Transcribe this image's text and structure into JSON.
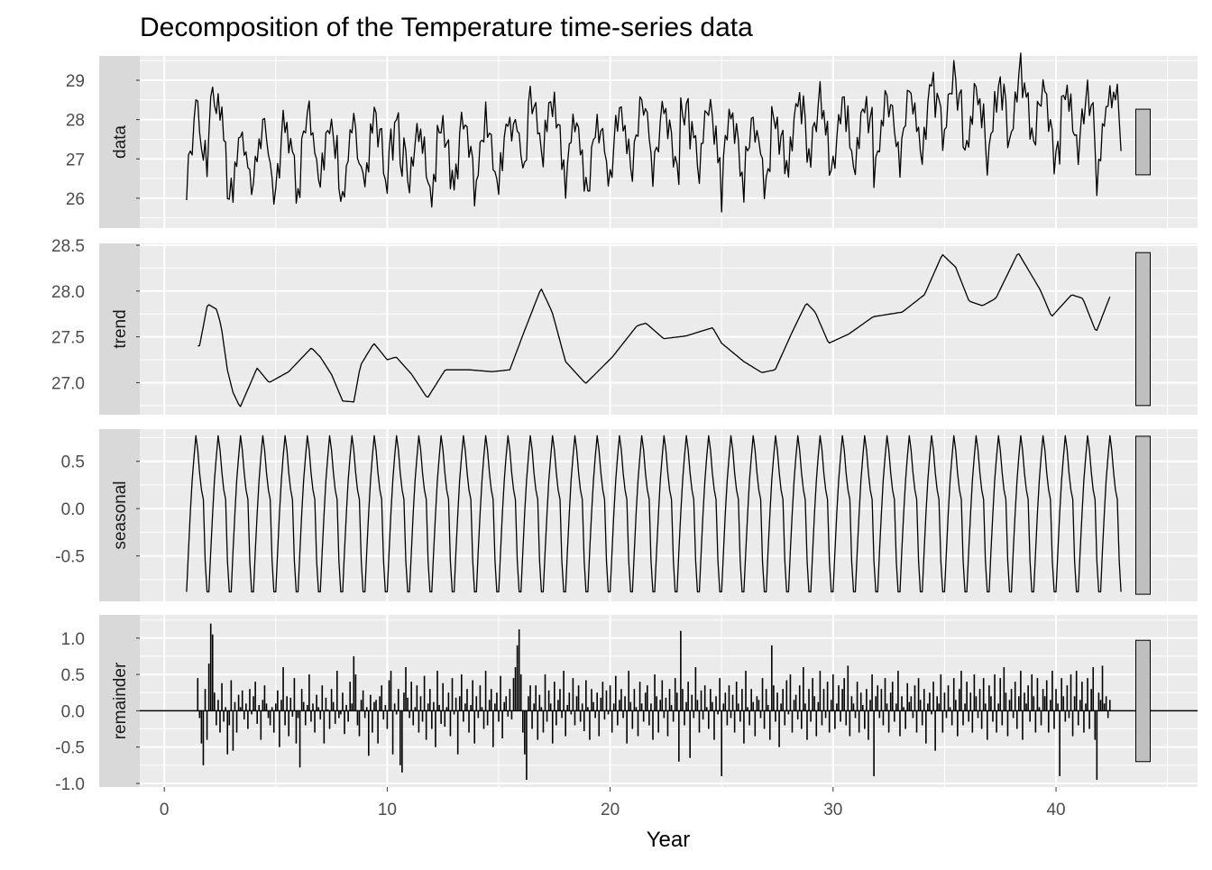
{
  "chart_data": {
    "type": "line",
    "title": "Decomposition of the Temperature time-series data",
    "xlabel": "Year",
    "xlim": [
      -1.1,
      46.35
    ],
    "x_ticks": [
      0,
      10,
      20,
      30,
      40
    ],
    "x_tick_labels": [
      "0",
      "10",
      "20",
      "30",
      "40"
    ],
    "frequency": 12,
    "grid": true,
    "scale_bar_length": 1.67,
    "panels": [
      {
        "name": "data",
        "ylim": [
          25.24,
          29.62
        ],
        "ticks": [
          26,
          27,
          28,
          29
        ],
        "tick_labels": [
          "26",
          "27",
          "28",
          "29"
        ]
      },
      {
        "name": "trend",
        "ylim": [
          26.65,
          28.52
        ],
        "ticks": [
          27.0,
          27.5,
          28.0,
          28.5
        ],
        "tick_labels": [
          "27.0",
          "27.5",
          "28.0",
          "28.5"
        ]
      },
      {
        "name": "seasonal",
        "ylim": [
          -0.98,
          0.84
        ],
        "ticks": [
          -0.5,
          0.0,
          0.5
        ],
        "tick_labels": [
          "-0.5",
          "0.0",
          "0.5"
        ]
      },
      {
        "name": "remainder",
        "ylim": [
          -1.05,
          1.32
        ],
        "ticks": [
          -1.0,
          -0.5,
          0.0,
          0.5,
          1.0
        ],
        "tick_labels": [
          "-1.0",
          "-0.5",
          "0.0",
          "0.5",
          "1.0"
        ]
      }
    ],
    "series": {
      "start": 1.0,
      "trend_start": 1.5,
      "seasonal_pattern": [
        -0.88,
        -0.45,
        -0.05,
        0.3,
        0.55,
        0.77,
        0.62,
        0.38,
        0.2,
        0.1,
        -0.55,
        -0.88
      ],
      "trend_knots": {
        "x": [
          1.58,
          1.94,
          2.35,
          2.55,
          2.83,
          3.07,
          3.4,
          4.16,
          4.7,
          5.58,
          6.6,
          7.0,
          7.5,
          8.0,
          8.5,
          8.8,
          9.4,
          10.0,
          10.4,
          11.1,
          11.8,
          12.6,
          13.7,
          14.7,
          15.5,
          16.1,
          16.9,
          17.4,
          18.0,
          18.9,
          20.1,
          21.2,
          21.6,
          22.4,
          23.4,
          24.6,
          25.0,
          26.0,
          26.8,
          27.4,
          28.2,
          28.8,
          29.2,
          29.8,
          30.7,
          31.8,
          33.1,
          34.1,
          34.9,
          35.5,
          36.1,
          36.7,
          37.3,
          38.3,
          39.3,
          39.8,
          40.7,
          41.2,
          41.8,
          42.42
        ],
        "y": [
          27.4,
          27.86,
          27.8,
          27.62,
          27.14,
          26.9,
          26.73,
          27.16,
          27.0,
          27.12,
          27.38,
          27.28,
          27.09,
          26.8,
          26.79,
          27.19,
          27.43,
          27.25,
          27.28,
          27.09,
          26.83,
          27.14,
          27.14,
          27.12,
          27.14,
          27.53,
          28.03,
          27.77,
          27.23,
          26.99,
          27.28,
          27.62,
          27.65,
          27.48,
          27.51,
          27.6,
          27.43,
          27.23,
          27.11,
          27.14,
          27.57,
          27.87,
          27.77,
          27.43,
          27.53,
          27.72,
          27.77,
          27.96,
          28.4,
          28.26,
          27.89,
          27.84,
          27.92,
          28.42,
          28.01,
          27.72,
          27.96,
          27.92,
          27.55,
          27.94
        ]
      },
      "data_head": [
        25.95,
        27.1,
        27.2,
        27.1,
        28.0,
        28.5
      ],
      "data_tail": [
        28.3,
        28.7,
        28.5,
        28.9,
        28.0,
        27.2
      ],
      "remainder": [
        0.45,
        -0.1,
        -0.45,
        -0.75,
        0.3,
        -0.4,
        0.65,
        1.2,
        1.05,
        0.25,
        -0.2,
        0.15,
        -0.3,
        0.38,
        -0.15,
        0.05,
        -0.6,
        -0.2,
        0.42,
        -0.55,
        0.12,
        -0.3,
        0.22,
        0.05,
        0.28,
        -0.12,
        0.1,
        -0.25,
        0.3,
        -0.05,
        0.2,
        0.4,
        -0.18,
        0.08,
        -0.4,
        0.15,
        0.35,
        0.1,
        -0.1,
        -0.2,
        0.05,
        -0.3,
        0.1,
        0.28,
        -0.5,
        0.15,
        0.6,
        -0.2,
        0.2,
        -0.35,
        0.18,
        -0.08,
        0.45,
        -0.45,
        -0.1,
        -0.78,
        0.3,
        0.12,
        -0.2,
        0.08,
        0.5,
        -0.15,
        0.1,
        -0.3,
        0.22,
        0.05,
        -0.12,
        0.35,
        -0.45,
        0.18,
        0.02,
        -0.25,
        0.3,
        0.12,
        -0.18,
        0.55,
        -0.1,
        -0.05,
        0.25,
        -0.32,
        0.08,
        -0.15,
        0.4,
        0.1,
        0.75,
        0.5,
        -0.2,
        -0.35,
        0.15,
        0.28,
        -0.1,
        0.05,
        -0.62,
        0.22,
        -0.3,
        0.12,
        0.15,
        -0.45,
        0.2,
        0.35,
        -0.12,
        0.08,
        -0.25,
        0.42,
        0.55,
        -0.6,
        0.1,
        -0.05,
        0.3,
        -0.75,
        -0.85,
        0.25,
        0.6,
        0.18,
        -0.1,
        0.4,
        -0.2,
        0.05,
        0.35,
        -0.3,
        0.2,
        -0.15,
        0.48,
        -0.4,
        0.1,
        0.3,
        -0.25,
        0.12,
        -0.5,
        0.55,
        0.08,
        -0.18,
        0.38,
        -0.22,
        0.05,
        0.25,
        -0.35,
        0.45,
        -0.05,
        0.18,
        -0.6,
        0.2,
        0.5,
        -0.15,
        0.1,
        0.3,
        -0.3,
        0.08,
        0.42,
        -0.45,
        0.2,
        -0.1,
        0.35,
        0.05,
        -0.25,
        0.55,
        -0.2,
        0.15,
        0.3,
        -0.5,
        0.1,
        0.25,
        -0.15,
        0.48,
        -0.38,
        0.12,
        0.2,
        -0.08,
        0.3,
        -0.12,
        0.45,
        0.6,
        0.9,
        1.12,
        0.5,
        -0.3,
        -0.6,
        -0.95,
        0.2,
        0.35,
        -0.25,
        0.1,
        0.35,
        -0.4,
        0.22,
        0.05,
        -0.3,
        0.5,
        -0.15,
        0.28,
        0.1,
        -0.45,
        0.4,
        -0.2,
        0.15,
        0.3,
        -0.1,
        0.55,
        -0.35,
        0.08,
        0.25,
        -0.05,
        0.45,
        -0.2,
        0.2,
        0.35,
        -0.15,
        0.1,
        -0.28,
        0.42,
        0.05,
        -0.4,
        0.3,
        0.12,
        -0.1,
        0.25,
        -0.35,
        0.18,
        0.4,
        -0.12,
        0.28,
        -0.05,
        0.35,
        -0.3,
        0.1,
        0.48,
        -0.2,
        0.15,
        0.3,
        -0.1,
        0.2,
        -0.45,
        0.55,
        0.12,
        -0.25,
        0.3,
        0.05,
        -0.35,
        0.4,
        0.1,
        -0.15,
        0.25,
        0.35,
        -0.2,
        0.1,
        -0.4,
        0.5,
        0.2,
        -0.3,
        0.15,
        0.42,
        -0.1,
        0.18,
        -0.35,
        0.3,
        0.08,
        -0.15,
        0.45,
        0.25,
        -0.7,
        1.1,
        0.3,
        -0.2,
        0.12,
        0.4,
        -0.65,
        0.22,
        -0.1,
        0.6,
        0.15,
        -0.3,
        0.28,
        -0.12,
        0.35,
        0.05,
        -0.25,
        0.3,
        0.12,
        -0.4,
        0.2,
        -0.05,
        0.45,
        -0.9,
        0.1,
        0.25,
        -0.2,
        0.35,
        -0.1,
        0.22,
        -0.3,
        0.4,
        0.1,
        -0.15,
        0.3,
        -0.45,
        0.55,
        0.05,
        -0.2,
        0.3,
        0.12,
        -0.35,
        0.2,
        0.15,
        -0.1,
        0.45,
        -0.25,
        0.3,
        0.08,
        -0.4,
        0.9,
        0.35,
        -0.15,
        0.25,
        -0.5,
        0.1,
        0.3,
        -0.2,
        0.42,
        -0.05,
        0.5,
        -0.3,
        0.15,
        0.22,
        -0.12,
        0.35,
        -0.25,
        0.6,
        0.1,
        -0.4,
        0.3,
        -0.15,
        0.45,
        0.2,
        -0.35,
        0.12,
        0.55,
        -0.2,
        0.3,
        -0.1,
        0.4,
        -0.3,
        0.15,
        0.5,
        -0.25,
        0.1,
        0.35,
        -0.15,
        0.3,
        0.45,
        -0.2,
        0.62,
        -0.35,
        0.2,
        0.1,
        -0.1,
        0.4,
        -0.3,
        0.25,
        0.08,
        -0.25,
        0.3,
        -0.4,
        0.15,
        0.5,
        -0.9,
        0.2,
        0.35,
        -0.1,
        0.3,
        -0.2,
        0.45,
        0.1,
        -0.3,
        0.25,
        0.4,
        -0.15,
        0.1,
        0.55,
        -0.35,
        0.2,
        0.05,
        -0.25,
        0.38,
        0.12,
        0.2,
        -0.1,
        0.35,
        -0.3,
        0.45,
        0.15,
        -0.2,
        0.3,
        -0.45,
        0.1,
        0.25,
        -0.05,
        0.4,
        -0.55,
        0.2,
        0.1,
        0.5,
        -0.3,
        0.25,
        -0.1,
        0.35,
        0.05,
        -0.2,
        0.45,
        0.15,
        -0.35,
        0.3,
        0.55,
        -0.2,
        0.1,
        0.4,
        -0.15,
        0.25,
        -0.3,
        0.5,
        0.2,
        -0.1,
        0.3,
        -0.25,
        0.45,
        0.1,
        -0.4,
        0.35,
        0.2,
        -0.15,
        0.5,
        -0.3,
        0.1,
        0.45,
        -0.2,
        0.6,
        0.25,
        -0.35,
        0.15,
        0.3,
        -0.1,
        0.4,
        -0.25,
        0.2,
        0.55,
        -0.4,
        0.25,
        0.1,
        0.35,
        -0.15,
        0.5,
        0.2,
        -0.3,
        0.45,
        0.05,
        -0.2,
        0.3,
        0.2,
        0.42,
        -0.3,
        0.15,
        0.55,
        -0.25,
        0.3,
        0.1,
        -0.9,
        0.45,
        0.2,
        -0.15,
        0.35,
        -0.1,
        0.5,
        -0.35,
        0.2,
        0.55,
        -0.2,
        0.15,
        0.4,
        -0.3,
        0.1,
        0.45,
        -0.25,
        0.3,
        0.6,
        -0.4,
        -0.95,
        0.25,
        0.15,
        0.62,
        0.1,
        0.2,
        -0.1,
        0.15
      ]
    },
    "colors": {
      "panel": "#ebebeb",
      "strip": "#d9d9d9",
      "grid": "#ffffff",
      "line": "#000000",
      "scale_bar": "#bfbfbf",
      "tick_text": "#4d4d4d"
    }
  }
}
